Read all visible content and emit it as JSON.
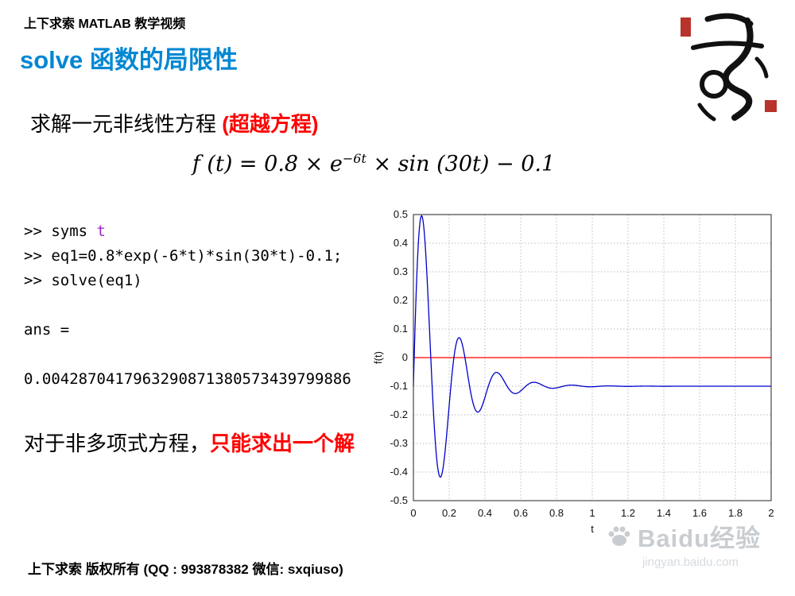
{
  "header": {
    "brand": "上下求索 MATLAB 教学视频"
  },
  "title": "solve 函数的局限性",
  "intro": {
    "black": "求解一元非线性方程 ",
    "red": "(超越方程)"
  },
  "formula": {
    "left": "f (t) = 0.8 × e",
    "exponent": "−6t",
    "right": " × sin (30t) − 0.1"
  },
  "code": {
    "prompt_syms": ">> syms ",
    "syms_var": "t",
    "line_eq": ">> eq1=0.8*exp(-6*t)*sin(30*t)-0.1;",
    "line_solve": ">> solve(eq1)",
    "ans_label": "ans =",
    "ans_value": "0.0042870417963290871380573439799886"
  },
  "note": {
    "black": "对于非多项式方程，",
    "red": "只能求出一个解"
  },
  "chart_data": {
    "type": "line",
    "title": "",
    "xlabel": "t",
    "ylabel": "f(t)",
    "xlim": [
      0,
      2
    ],
    "ylim": [
      -0.5,
      0.5
    ],
    "x_ticks": [
      0,
      0.2,
      0.4,
      0.6,
      0.8,
      1,
      1.2,
      1.4,
      1.6,
      1.8,
      2
    ],
    "y_ticks": [
      -0.5,
      -0.4,
      -0.3,
      -0.2,
      -0.1,
      0,
      0.1,
      0.2,
      0.3,
      0.4,
      0.5
    ],
    "grid": true,
    "legend": "none",
    "series": [
      {
        "name": "f(t) = 0.8*exp(-6*t)*sin(30*t) - 0.1",
        "color": "#0000cc",
        "fn": {
          "type": "damped_sine",
          "amplitude": 0.8,
          "decay": 6,
          "omega": 30,
          "offset": -0.1
        },
        "samples": 600
      },
      {
        "name": "zero reference line",
        "color": "#ff0000",
        "constant": 0
      }
    ]
  },
  "footer": {
    "text": "上下求索 版权所有 (QQ : 993878382  微信: sxqiuso)"
  },
  "watermark": {
    "brand": "Baidu经验",
    "domain": "jingyan.baidu.com"
  },
  "icons": {
    "watermark_icon": "baidu-paw-icon",
    "logo": "seal-calligraphy-logo"
  },
  "colors": {
    "accent_blue": "#0087d2",
    "alert_red": "#ff0000",
    "curve_blue": "#0000cc",
    "watermark_gray": "#c9cdd1"
  }
}
